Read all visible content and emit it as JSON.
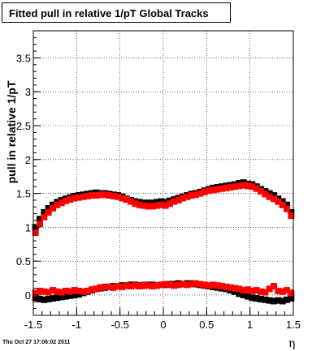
{
  "chart_data": {
    "type": "scatter",
    "title": "Fitted pull in relative 1/pT  Global Tracks",
    "xlabel": "η",
    "ylabel": "pull in relative 1/pT",
    "xlim": [
      -1.5,
      1.5
    ],
    "ylim": [
      -0.3,
      3.9
    ],
    "xticks": [
      -1.5,
      -1,
      -0.5,
      0,
      0.5,
      1,
      1.5
    ],
    "xtick_labels": [
      "-1.5",
      "-1",
      "-0.5",
      "0",
      "0.5",
      "1",
      "1.5"
    ],
    "yticks": [
      0,
      0.5,
      1,
      1.5,
      2,
      2.5,
      3,
      3.5
    ],
    "ytick_labels": [
      "0",
      "0.5",
      "1",
      "1.5",
      "2",
      "2.5",
      "3",
      "3.5"
    ],
    "grid": true,
    "series": [
      {
        "color": "#000000",
        "x": [
          -1.475,
          -1.425,
          -1.375,
          -1.325,
          -1.275,
          -1.225,
          -1.175,
          -1.125,
          -1.075,
          -1.025,
          -0.975,
          -0.925,
          -0.875,
          -0.825,
          -0.775,
          -0.725,
          -0.675,
          -0.625,
          -0.575,
          -0.525,
          -0.475,
          -0.425,
          -0.375,
          -0.325,
          -0.275,
          -0.225,
          -0.175,
          -0.125,
          -0.075,
          -0.025,
          0.025,
          0.075,
          0.125,
          0.175,
          0.225,
          0.275,
          0.325,
          0.375,
          0.425,
          0.475,
          0.525,
          0.575,
          0.625,
          0.675,
          0.725,
          0.775,
          0.825,
          0.875,
          0.925,
          0.975,
          1.025,
          1.075,
          1.125,
          1.175,
          1.225,
          1.275,
          1.325,
          1.375,
          1.425,
          1.475
        ],
        "y": [
          1.0,
          1.12,
          1.22,
          1.28,
          1.33,
          1.37,
          1.4,
          1.42,
          1.44,
          1.46,
          1.47,
          1.48,
          1.49,
          1.5,
          1.51,
          1.5,
          1.5,
          1.49,
          1.48,
          1.47,
          1.45,
          1.42,
          1.4,
          1.38,
          1.37,
          1.36,
          1.36,
          1.36,
          1.37,
          1.38,
          1.37,
          1.39,
          1.41,
          1.43,
          1.45,
          1.47,
          1.49,
          1.5,
          1.52,
          1.54,
          1.56,
          1.58,
          1.59,
          1.6,
          1.61,
          1.62,
          1.63,
          1.65,
          1.66,
          1.64,
          1.63,
          1.6,
          1.56,
          1.53,
          1.5,
          1.47,
          1.42,
          1.38,
          1.33,
          1.22
        ],
        "note_values_from_markers": true
      },
      {
        "color": "#ff0000",
        "x": [
          -1.475,
          -1.425,
          -1.375,
          -1.325,
          -1.275,
          -1.225,
          -1.175,
          -1.125,
          -1.075,
          -1.025,
          -0.975,
          -0.925,
          -0.875,
          -0.825,
          -0.775,
          -0.725,
          -0.675,
          -0.625,
          -0.575,
          -0.525,
          -0.475,
          -0.425,
          -0.375,
          -0.325,
          -0.275,
          -0.225,
          -0.175,
          -0.125,
          -0.075,
          -0.025,
          0.025,
          0.075,
          0.125,
          0.175,
          0.225,
          0.275,
          0.325,
          0.375,
          0.425,
          0.475,
          0.525,
          0.575,
          0.625,
          0.675,
          0.725,
          0.775,
          0.825,
          0.875,
          0.925,
          0.975,
          1.025,
          1.075,
          1.125,
          1.175,
          1.225,
          1.275,
          1.325,
          1.375,
          1.425,
          1.475
        ],
        "y": [
          0.92,
          1.05,
          1.15,
          1.22,
          1.28,
          1.33,
          1.36,
          1.39,
          1.41,
          1.43,
          1.44,
          1.45,
          1.46,
          1.47,
          1.47,
          1.48,
          1.48,
          1.47,
          1.46,
          1.45,
          1.43,
          1.41,
          1.38,
          1.35,
          1.33,
          1.32,
          1.31,
          1.31,
          1.32,
          1.33,
          1.32,
          1.35,
          1.38,
          1.4,
          1.43,
          1.45,
          1.47,
          1.48,
          1.5,
          1.52,
          1.54,
          1.55,
          1.56,
          1.57,
          1.58,
          1.59,
          1.6,
          1.61,
          1.62,
          1.61,
          1.6,
          1.57,
          1.53,
          1.49,
          1.45,
          1.42,
          1.38,
          1.33,
          1.27,
          1.17
        ]
      },
      {
        "color": "#000000",
        "x": [
          -1.475,
          -1.425,
          -1.375,
          -1.325,
          -1.275,
          -1.225,
          -1.175,
          -1.125,
          -1.075,
          -1.025,
          -0.975,
          -0.925,
          -0.875,
          -0.825,
          -0.775,
          -0.725,
          -0.675,
          -0.625,
          -0.575,
          -0.525,
          -0.475,
          -0.425,
          -0.375,
          -0.325,
          -0.275,
          -0.225,
          -0.175,
          -0.125,
          -0.075,
          -0.025,
          0.025,
          0.075,
          0.125,
          0.175,
          0.225,
          0.275,
          0.325,
          0.375,
          0.425,
          0.475,
          0.525,
          0.575,
          0.625,
          0.675,
          0.725,
          0.775,
          0.825,
          0.875,
          0.925,
          0.975,
          1.025,
          1.075,
          1.125,
          1.175,
          1.225,
          1.275,
          1.325,
          1.375,
          1.425,
          1.475
        ],
        "y": [
          -0.04,
          -0.06,
          -0.07,
          -0.06,
          -0.05,
          -0.04,
          -0.03,
          -0.02,
          -0.01,
          0.0,
          0.01,
          0.03,
          0.05,
          0.07,
          0.09,
          0.1,
          0.11,
          0.12,
          0.13,
          0.13,
          0.14,
          0.14,
          0.15,
          0.15,
          0.14,
          0.14,
          0.15,
          0.15,
          0.14,
          0.15,
          0.15,
          0.16,
          0.16,
          0.17,
          0.16,
          0.17,
          0.17,
          0.16,
          0.15,
          0.14,
          0.13,
          0.12,
          0.11,
          0.1,
          0.09,
          0.07,
          0.05,
          0.02,
          0.0,
          -0.02,
          -0.04,
          -0.05,
          -0.06,
          -0.07,
          -0.08,
          -0.09,
          -0.08,
          -0.09,
          -0.07,
          -0.05
        ]
      },
      {
        "color": "#ff0000",
        "x": [
          -1.475,
          -1.425,
          -1.375,
          -1.325,
          -1.275,
          -1.225,
          -1.175,
          -1.125,
          -1.075,
          -1.025,
          -0.975,
          -0.925,
          -0.875,
          -0.825,
          -0.775,
          -0.725,
          -0.675,
          -0.625,
          -0.575,
          -0.525,
          -0.475,
          -0.425,
          -0.375,
          -0.325,
          -0.275,
          -0.225,
          -0.175,
          -0.125,
          -0.075,
          -0.025,
          0.025,
          0.075,
          0.125,
          0.175,
          0.225,
          0.275,
          0.325,
          0.375,
          0.425,
          0.475,
          0.525,
          0.575,
          0.625,
          0.675,
          0.725,
          0.775,
          0.825,
          0.875,
          0.925,
          0.975,
          1.025,
          1.075,
          1.125,
          1.175,
          1.225,
          1.275,
          1.325,
          1.375,
          1.425,
          1.475
        ],
        "y": [
          0.03,
          0.06,
          0.05,
          0.04,
          0.07,
          0.05,
          0.04,
          0.06,
          0.05,
          0.07,
          0.06,
          0.05,
          0.06,
          0.08,
          0.09,
          0.11,
          0.12,
          0.12,
          0.11,
          0.13,
          0.12,
          0.14,
          0.13,
          0.14,
          0.13,
          0.15,
          0.14,
          0.13,
          0.14,
          0.15,
          0.16,
          0.15,
          0.14,
          0.15,
          0.16,
          0.15,
          0.16,
          0.17,
          0.16,
          0.15,
          0.14,
          0.15,
          0.14,
          0.13,
          0.12,
          0.11,
          0.1,
          0.09,
          0.07,
          0.08,
          0.06,
          0.07,
          0.05,
          0.04,
          0.09,
          0.13,
          0.06,
          0.05,
          0.07,
          0.03
        ]
      }
    ]
  },
  "footer": {
    "timestamp": "Thu Oct 27 17:06:02 2011"
  }
}
